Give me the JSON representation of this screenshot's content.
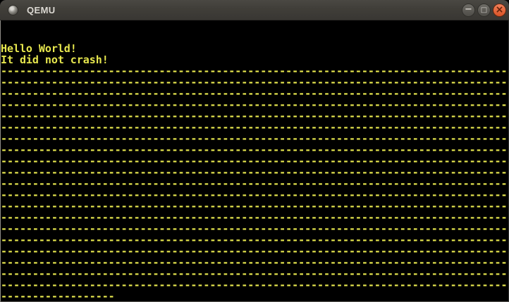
{
  "window": {
    "title": "QEMU",
    "controls": {
      "minimize_glyph": "−",
      "maximize_glyph": "□",
      "close_glyph": "×"
    }
  },
  "colors": {
    "terminal_fg": "#e7e74e",
    "terminal_bg": "#000000",
    "titlebar_bg": "#403e39",
    "close_button": "#e2602f"
  },
  "terminal": {
    "cols": 80,
    "rows": 25,
    "lines": [
      "",
      "",
      "Hello World!",
      "It did not crash!",
      "--------------------------------------------------------------------------------",
      "--------------------------------------------------------------------------------",
      "--------------------------------------------------------------------------------",
      "--------------------------------------------------------------------------------",
      "--------------------------------------------------------------------------------",
      "--------------------------------------------------------------------------------",
      "--------------------------------------------------------------------------------",
      "--------------------------------------------------------------------------------",
      "--------------------------------------------------------------------------------",
      "--------------------------------------------------------------------------------",
      "--------------------------------------------------------------------------------",
      "--------------------------------------------------------------------------------",
      "--------------------------------------------------------------------------------",
      "--------------------------------------------------------------------------------",
      "--------------------------------------------------------------------------------",
      "--------------------------------------------------------------------------------",
      "--------------------------------------------------------------------------------",
      "--------------------------------------------------------------------------------",
      "--------------------------------------------------------------------------------",
      "--------------------------------------------------------------------------------",
      "------------------"
    ]
  }
}
